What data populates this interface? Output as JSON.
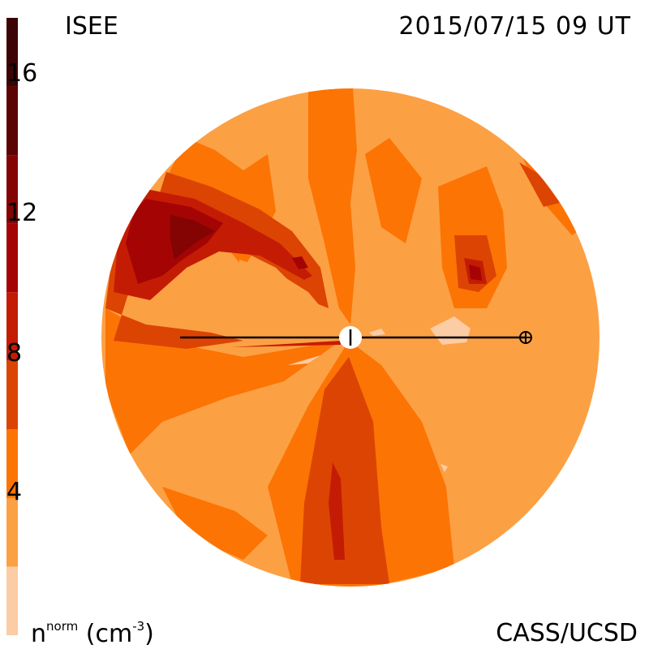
{
  "header": {
    "org_label": "ISEE",
    "timestamp": "2015/07/15 09 UT",
    "credit": "CASS/UCSD"
  },
  "colorbar": {
    "label_base": "n",
    "label_sup": "norm",
    "label_unit_open": " (cm",
    "label_unit_sup": "-3",
    "label_unit_close": ")",
    "ticks": [
      "4",
      "8",
      "12",
      "16"
    ],
    "levels": [
      {
        "min": 0,
        "max": 2,
        "color": "#fccca4"
      },
      {
        "min": 2,
        "max": 4,
        "color": "#fca044"
      },
      {
        "min": 4,
        "max": 6,
        "color": "#fc7404"
      },
      {
        "min": 6,
        "max": 8,
        "color": "#dc4404"
      },
      {
        "min": 8,
        "max": 10,
        "color": "#c41c04"
      },
      {
        "min": 10,
        "max": 12,
        "color": "#a40404"
      },
      {
        "min": 12,
        "max": 14,
        "color": "#840404"
      },
      {
        "min": 14,
        "max": 16,
        "color": "#5c0404"
      },
      {
        "min": 16,
        "max": 18,
        "color": "#3c0404"
      }
    ]
  },
  "map": {
    "background_color": "#fca044",
    "earth_symbol": "earth-marker",
    "sun_symbol": "sun-marker"
  }
}
